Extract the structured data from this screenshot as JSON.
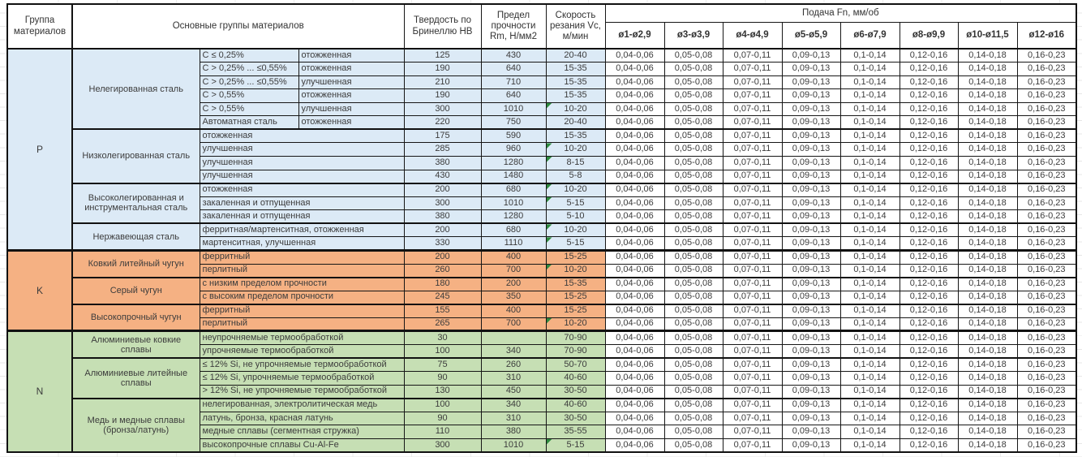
{
  "table": {
    "header": {
      "group": "Группа материалов",
      "materials": "Основные группы материалов",
      "hardness": "Твердость по Бринеллю HB",
      "strength": "Предел прочности Rm, Н/мм2",
      "speed": "Скорость резания Vc, м/мин",
      "feed_title": "Подача Fn, мм/об",
      "feed_cols": [
        "ø1-ø2,9",
        "ø3-ø3,9",
        "ø4-ø4,9",
        "ø5-ø5,9",
        "ø6-ø7,9",
        "ø8-ø9,9",
        "ø10-ø11,5",
        "ø12-ø16"
      ]
    },
    "feed_values": [
      "0,04-0,06",
      "0,05-0,08",
      "0,07-0,11",
      "0,09-0,13",
      "0,1-0,14",
      "0,12-0,16",
      "0,14-0,18",
      "0,16-0,23"
    ],
    "groups": [
      {
        "code": "P",
        "color": "#dceaf6",
        "subgroups": [
          {
            "name": "Нелегированная сталь",
            "split": true,
            "rows": [
              {
                "cond": "C ≤ 0,25%",
                "state": "отожженная",
                "hb": "125",
                "rm": "430",
                "vc": "20-40",
                "note": false
              },
              {
                "cond": "C > 0,25% ... ≤0,55%",
                "state": "отожженная",
                "hb": "190",
                "rm": "640",
                "vc": "15-35",
                "note": false
              },
              {
                "cond": "C > 0,25% ... ≤0,55%",
                "state": "улучшенная",
                "hb": "210",
                "rm": "710",
                "vc": "15-35",
                "note": false
              },
              {
                "cond": "C > 0,55%",
                "state": "отожженная",
                "hb": "190",
                "rm": "640",
                "vc": "15-35",
                "note": false
              },
              {
                "cond": "C > 0,55%",
                "state": "улучшенная",
                "hb": "300",
                "rm": "1010",
                "vc": "10-20",
                "note": true
              },
              {
                "cond": "Автоматная сталь",
                "state": "отожженная",
                "hb": "220",
                "rm": "750",
                "vc": "20-40",
                "note": false
              }
            ]
          },
          {
            "name": "Низколегированная сталь",
            "split": false,
            "rows": [
              {
                "state": "отожженная",
                "hb": "175",
                "rm": "590",
                "vc": "15-35",
                "note": false
              },
              {
                "state": "улучшенная",
                "hb": "285",
                "rm": "960",
                "vc": "10-20",
                "note": true
              },
              {
                "state": "улучшенная",
                "hb": "380",
                "rm": "1280",
                "vc": "8-15",
                "note": true
              },
              {
                "state": "улучшенная",
                "hb": "430",
                "rm": "1480",
                "vc": "5-8",
                "note": false
              }
            ]
          },
          {
            "name": "Высоколегированная и инструментальная сталь",
            "split": false,
            "rows": [
              {
                "state": "отожженная",
                "hb": "200",
                "rm": "680",
                "vc": "10-20",
                "note": true
              },
              {
                "state": "закаленная и отпущенная",
                "hb": "300",
                "rm": "1010",
                "vc": "5-15",
                "note": true
              },
              {
                "state": "закаленная и отпущенная",
                "hb": "380",
                "rm": "1280",
                "vc": "5-10",
                "note": false
              }
            ]
          },
          {
            "name": "Нержавеющая сталь",
            "split": false,
            "rows": [
              {
                "state": "ферритная/мартенситная, отожженная",
                "hb": "200",
                "rm": "680",
                "vc": "10-20",
                "note": true
              },
              {
                "state": "мартенситная, улучшенная",
                "hb": "330",
                "rm": "1110",
                "vc": "5-15",
                "note": true
              }
            ]
          }
        ]
      },
      {
        "code": "K",
        "color": "#f5b183",
        "subgroups": [
          {
            "name": "Ковкий литейный чугун",
            "split": false,
            "rows": [
              {
                "state": "ферритный",
                "hb": "200",
                "rm": "400",
                "vc": "15-25",
                "note": false
              },
              {
                "state": "перлитный",
                "hb": "260",
                "rm": "700",
                "vc": "10-20",
                "note": true
              }
            ]
          },
          {
            "name": "Серый чугун",
            "split": false,
            "rows": [
              {
                "state": "с низким пределом прочности",
                "hb": "180",
                "rm": "200",
                "vc": "15-35",
                "note": false
              },
              {
                "state": "с высоким пределом прочности",
                "hb": "245",
                "rm": "350",
                "vc": "15-25",
                "note": false
              }
            ]
          },
          {
            "name": "Высокопрочный чугун",
            "split": false,
            "rows": [
              {
                "state": "ферритный",
                "hb": "155",
                "rm": "400",
                "vc": "15-25",
                "note": false
              },
              {
                "state": "перлитный",
                "hb": "265",
                "rm": "700",
                "vc": "10-20",
                "note": true
              }
            ]
          }
        ]
      },
      {
        "code": "N",
        "color": "#c6dfb4",
        "subgroups": [
          {
            "name": "Алюминиевые ковкие сплавы",
            "split": false,
            "rows": [
              {
                "state": "неупрочняемые термообработкой",
                "hb": "30",
                "rm": "",
                "vc": "70-90",
                "note": false
              },
              {
                "state": "упрочняемые термообработкой",
                "hb": "100",
                "rm": "340",
                "vc": "70-90",
                "note": false
              }
            ]
          },
          {
            "name": "Алюминиевые литейные сплавы",
            "split": false,
            "rows": [
              {
                "state": "≤ 12% Si, не упрочняемые термообработкой",
                "hb": "75",
                "rm": "260",
                "vc": "50-70",
                "note": false
              },
              {
                "state": "≤ 12% Si, упрочняемые термообработкой",
                "hb": "90",
                "rm": "310",
                "vc": "40-60",
                "note": false
              },
              {
                "state": "> 12% Si, не упрочняемые термообработкой",
                "hb": "130",
                "rm": "450",
                "vc": "30-50",
                "note": false
              }
            ]
          },
          {
            "name": "Медь и медные сплавы (бронза/латунь)",
            "split": false,
            "rows": [
              {
                "state": "нелегированная, электролитическая медь",
                "hb": "100",
                "rm": "340",
                "vc": "40-60",
                "note": false
              },
              {
                "state": "латунь, бронза, красная латунь",
                "hb": "90",
                "rm": "310",
                "vc": "30-50",
                "note": false
              },
              {
                "state": "медные сплавы (сегментная стружка)",
                "hb": "110",
                "rm": "380",
                "vc": "35-55",
                "note": false
              },
              {
                "state": "высокопрочные сплавы Cu-Al-Fe",
                "hb": "300",
                "rm": "1010",
                "vc": "5-15",
                "note": true
              }
            ]
          }
        ]
      }
    ]
  }
}
